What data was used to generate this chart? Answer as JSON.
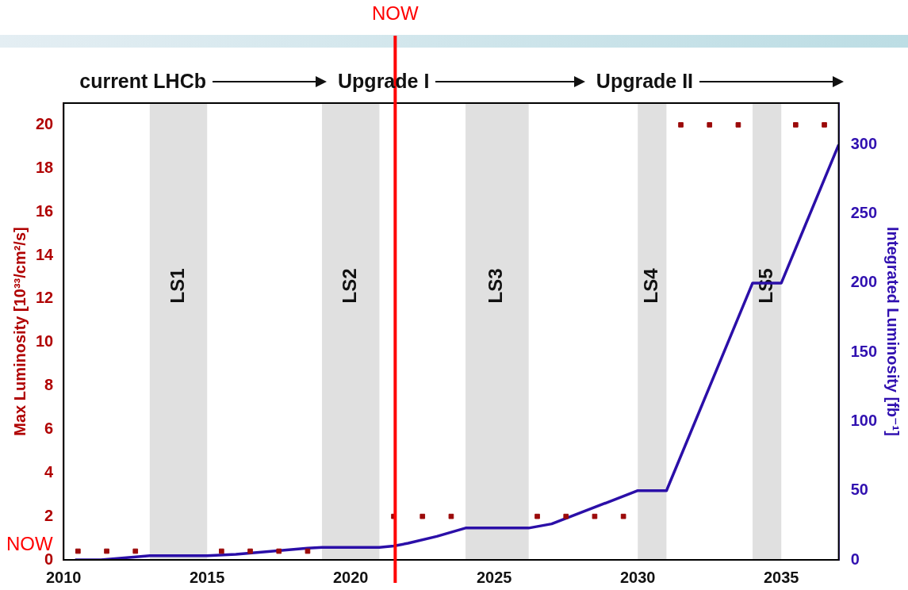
{
  "chart_data": {
    "type": "scatter",
    "ylabel": "Max Luminosity [10³³/cm²/s]",
    "y2label": "Integrated Luminosity [fb⁻¹]",
    "annotations": [
      "current LHCb",
      "Upgrade I",
      "Upgrade II",
      "NOW"
    ],
    "xlim": [
      2010,
      2037
    ],
    "xticks": [
      2010,
      2015,
      2020,
      2025,
      2030,
      2035
    ],
    "ylim": [
      0,
      21
    ],
    "yticks": [
      0,
      2,
      4,
      6,
      8,
      10,
      12,
      14,
      16,
      18,
      20
    ],
    "y2lim": [
      0,
      330
    ],
    "y2ticks": [
      0,
      50,
      100,
      150,
      200,
      250,
      300
    ],
    "grid": false,
    "legend": false,
    "series": [
      {
        "color": "#9b0a0a",
        "marker": "square",
        "x": [
          2010.5,
          2011.5,
          2012.5,
          2015.5,
          2016.5,
          2017.5,
          2018.5,
          2021.5,
          2022.5,
          2023.5,
          2026.5,
          2027.5,
          2028.5,
          2029.5,
          2031.5,
          2032.5,
          2033.5,
          2035.5,
          2036.5
        ],
        "values": [
          0.4,
          0.4,
          0.4,
          0.4,
          0.4,
          0.4,
          0.4,
          2,
          2,
          2,
          2,
          2,
          2,
          2,
          20,
          20,
          20,
          20,
          20
        ]
      },
      {
        "type": "line",
        "axis": "y2",
        "color": "#2b0fa8",
        "marker": "none",
        "line_style": "solid",
        "x": [
          2010.4,
          2011.3,
          2013,
          2015,
          2016,
          2018.5,
          2019,
          2021,
          2021.5,
          2022,
          2023,
          2024,
          2026.2,
          2027,
          2030,
          2031,
          2034,
          2035,
          2037
        ],
        "values": [
          0,
          0,
          3,
          3,
          4,
          8.5,
          9,
          9,
          10,
          12,
          17,
          23,
          23,
          26,
          50,
          50,
          200,
          200,
          300
        ]
      }
    ],
    "bands": [
      {
        "axis": "x",
        "from": 2013,
        "to": 2015,
        "label": "LS1",
        "color": "#e0e0e0"
      },
      {
        "axis": "x",
        "from": 2019,
        "to": 2021,
        "label": "LS2",
        "color": "#e0e0e0"
      },
      {
        "axis": "x",
        "from": 2024,
        "to": 2026.2,
        "label": "LS3",
        "color": "#e0e0e0"
      },
      {
        "axis": "x",
        "from": 2030,
        "to": 2031,
        "label": "LS4",
        "color": "#e0e0e0"
      },
      {
        "axis": "x",
        "from": 2034,
        "to": 2035,
        "label": "LS5",
        "color": "#e0e0e0"
      }
    ],
    "ref_lines": [
      {
        "axis": "x",
        "value": 2021.55,
        "label": "NOW",
        "color": "#ff0000",
        "line_style": "solid"
      }
    ]
  }
}
